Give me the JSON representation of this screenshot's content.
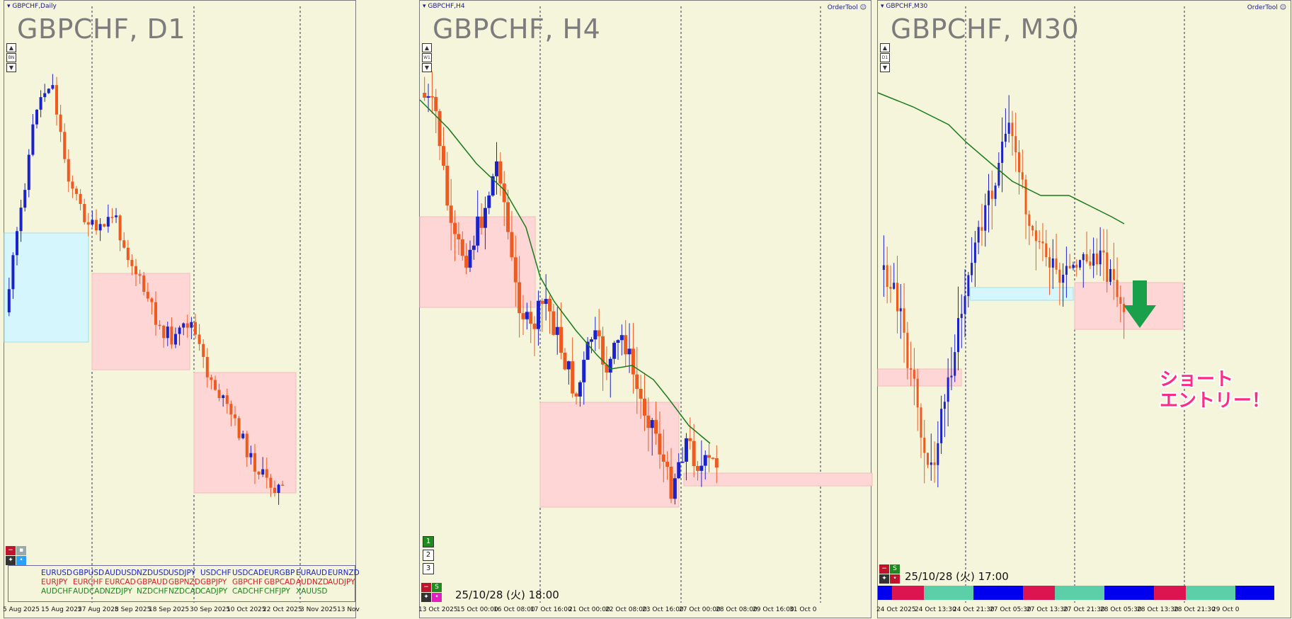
{
  "colors": {
    "bull": "#1a22cc",
    "bear": "#ef5a1e",
    "ma": "#187a18",
    "zoneRed": "#ffd6d6",
    "zoneCyan": "#d4f6fc"
  },
  "panes": [
    {
      "title": "GBPCHF,Daily",
      "symbol": "GBPCHF, D1",
      "timeframe_buttons": [
        "▲",
        "BN",
        "▼"
      ],
      "x_labels": [
        "5 Aug 2025",
        "15 Aug 2025",
        "27 Aug 2025",
        "8 Sep 2025",
        "18 Sep 2025",
        "30 Sep 2025",
        "10 Oct 2025",
        "22 Oct 2025",
        "3 Nov 2025",
        "13 Nov"
      ]
    },
    {
      "title": "GBPCHF,H4",
      "symbol": "GBPCHF, H4",
      "ordertool": "OrderTool",
      "timeframe_buttons": [
        "▲",
        "W1",
        "▼"
      ],
      "x_labels": [
        "13 Oct 2025",
        "15 Oct 00:00",
        "16 Oct 08:00",
        "17 Oct 16:00",
        "21 Oct 00:00",
        "22 Oct 08:00",
        "23 Oct 16:00",
        "27 Oct 00:00",
        "28 Oct 08:00",
        "29 Oct 16:00",
        "31 Oct 0"
      ],
      "timestamp": "25/10/28 (火) 18:00",
      "num_buttons": [
        "1",
        "2",
        "3"
      ],
      "s_button": "S"
    },
    {
      "title": "GBPCHF,M30",
      "symbol": "GBPCHF, M30",
      "ordertool": "OrderTool",
      "timeframe_buttons": [
        "▲",
        "D1",
        "▼"
      ],
      "x_labels": [
        "24 Oct 2025",
        "24 Oct 13:30",
        "24 Oct 21:30",
        "27 Oct 05:30",
        "27 Oct 13:30",
        "27 Oct 21:30",
        "28 Oct 05:30",
        "28 Oct 13:30",
        "28 Oct 21:30",
        "29 Oct 0"
      ],
      "timestamp": "25/10/28 (火) 17:00",
      "s_button": "S",
      "annotation_line1": "ショート",
      "annotation_line2": "エントリー！",
      "color_bar": [
        "#0000ee",
        "#dc1450",
        "#5ccfa8",
        "#0000ee",
        "#dc1450",
        "#5ccfa8",
        "#0000ee",
        "#dc1450",
        "#5ccfa8",
        "#0000ee"
      ]
    }
  ],
  "currency_pairs": [
    {
      "color": "#1a22cc",
      "items": [
        "EURUSD",
        "GBPUSD",
        "AUDUSD",
        "NZDUSD",
        "USDJPY",
        "USDCHF",
        "USDCAD",
        "EURGBP",
        "EURAUD",
        "EURNZD"
      ]
    },
    {
      "color": "#d81f1f",
      "items": [
        "EURJPY",
        "EURCHF",
        "EURCAD",
        "GBPAUD",
        "GBPNZD",
        "GBPJPY",
        "GBPCHF",
        "GBPCAD",
        "AUDNZD",
        "AUDJPY"
      ]
    },
    {
      "color": "#148a14",
      "items": [
        "AUDCHF",
        "AUDCAD",
        "NZDJPY",
        "NZDCHF",
        "NZDCAD",
        "CADJPY",
        "CADCHF",
        "CHFJPY",
        "XAUUSD"
      ]
    }
  ]
}
